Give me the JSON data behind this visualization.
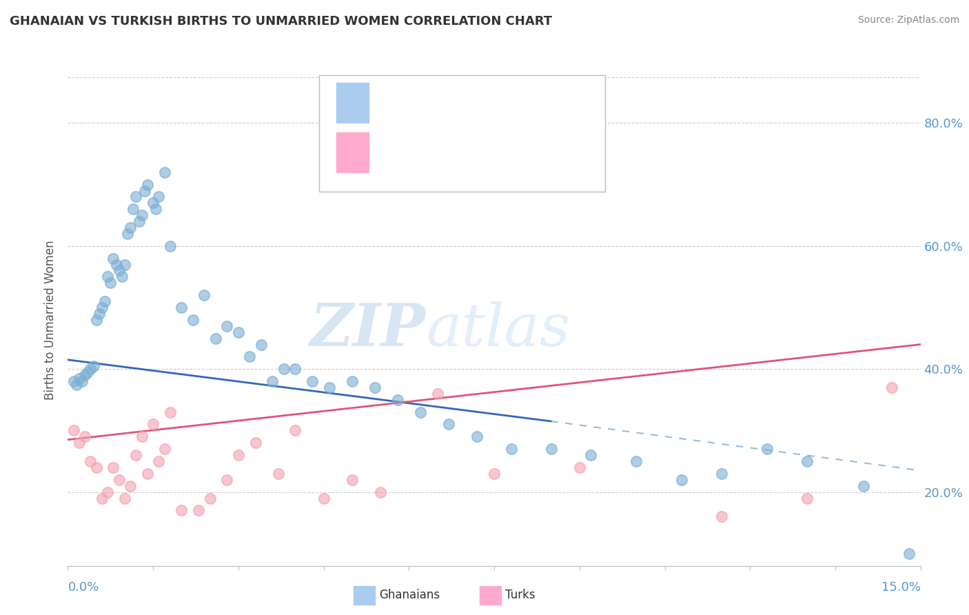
{
  "title": "GHANAIAN VS TURKISH BIRTHS TO UNMARRIED WOMEN CORRELATION CHART",
  "source": "Source: ZipAtlas.com",
  "xmin": 0.0,
  "xmax": 15.0,
  "ymin": 8.0,
  "ymax": 88.0,
  "color_ghanaian": "#7BAED4",
  "color_turk": "#F4A0B0",
  "background_color": "#FFFFFF",
  "grid_color": "#CCCCCC",
  "ytick_vals": [
    20.0,
    40.0,
    60.0,
    80.0
  ],
  "ytick_labels": [
    "20.0%",
    "40.0%",
    "60.0%",
    "80.0%"
  ],
  "ghanaian_x": [
    0.1,
    0.2,
    0.3,
    0.4,
    0.5,
    0.6,
    0.7,
    0.8,
    0.9,
    1.0,
    1.1,
    1.2,
    1.3,
    1.4,
    1.5,
    1.6,
    1.7,
    1.8,
    2.0,
    2.2,
    2.4,
    2.6,
    2.8,
    3.0,
    3.2,
    3.4,
    3.6,
    3.8,
    4.0,
    4.3,
    4.6,
    5.0,
    5.4,
    5.8,
    6.2,
    6.7,
    7.2,
    7.8,
    8.5,
    9.2,
    10.0,
    10.8,
    11.5,
    12.3,
    13.0,
    14.0,
    14.8,
    0.15,
    0.25,
    0.35,
    0.45,
    0.55,
    0.65,
    0.75,
    0.85,
    0.95,
    1.05,
    1.15,
    1.25,
    1.35,
    1.55
  ],
  "ghanaian_y": [
    38.0,
    38.5,
    39.0,
    40.0,
    48.0,
    50.0,
    55.0,
    58.0,
    56.0,
    57.0,
    63.0,
    68.0,
    65.0,
    70.0,
    67.0,
    68.0,
    72.0,
    60.0,
    50.0,
    48.0,
    52.0,
    45.0,
    47.0,
    46.0,
    42.0,
    44.0,
    38.0,
    40.0,
    40.0,
    38.0,
    37.0,
    38.0,
    37.0,
    35.0,
    33.0,
    31.0,
    29.0,
    27.0,
    27.0,
    26.0,
    25.0,
    22.0,
    23.0,
    27.0,
    25.0,
    21.0,
    10.0,
    37.5,
    38.0,
    39.5,
    40.5,
    49.0,
    51.0,
    54.0,
    57.0,
    55.0,
    62.0,
    66.0,
    64.0,
    69.0,
    66.0
  ],
  "turk_x": [
    0.1,
    0.2,
    0.3,
    0.4,
    0.5,
    0.6,
    0.7,
    0.8,
    0.9,
    1.0,
    1.1,
    1.2,
    1.3,
    1.4,
    1.5,
    1.6,
    1.7,
    1.8,
    2.0,
    2.3,
    2.5,
    2.8,
    3.0,
    3.3,
    3.7,
    4.0,
    4.5,
    5.0,
    5.5,
    6.5,
    7.5,
    9.0,
    11.5,
    13.0,
    14.5
  ],
  "turk_y": [
    30.0,
    28.0,
    29.0,
    25.0,
    24.0,
    19.0,
    20.0,
    24.0,
    22.0,
    19.0,
    21.0,
    26.0,
    29.0,
    23.0,
    31.0,
    25.0,
    27.0,
    33.0,
    17.0,
    17.0,
    19.0,
    22.0,
    26.0,
    28.0,
    23.0,
    30.0,
    19.0,
    22.0,
    20.0,
    36.0,
    23.0,
    24.0,
    16.0,
    19.0,
    37.0
  ],
  "trend_blue_x0": 0.0,
  "trend_blue_y0": 41.5,
  "trend_blue_x1": 8.5,
  "trend_blue_y1": 31.5,
  "trend_dash_x0": 8.5,
  "trend_dash_y0": 31.5,
  "trend_dash_x1": 15.0,
  "trend_dash_y1": 23.5,
  "trend_pink_x0": 0.0,
  "trend_pink_y0": 28.5,
  "trend_pink_x1": 15.0,
  "trend_pink_y1": 44.0,
  "watermark_zip": "ZIP",
  "watermark_atlas": "atlas"
}
